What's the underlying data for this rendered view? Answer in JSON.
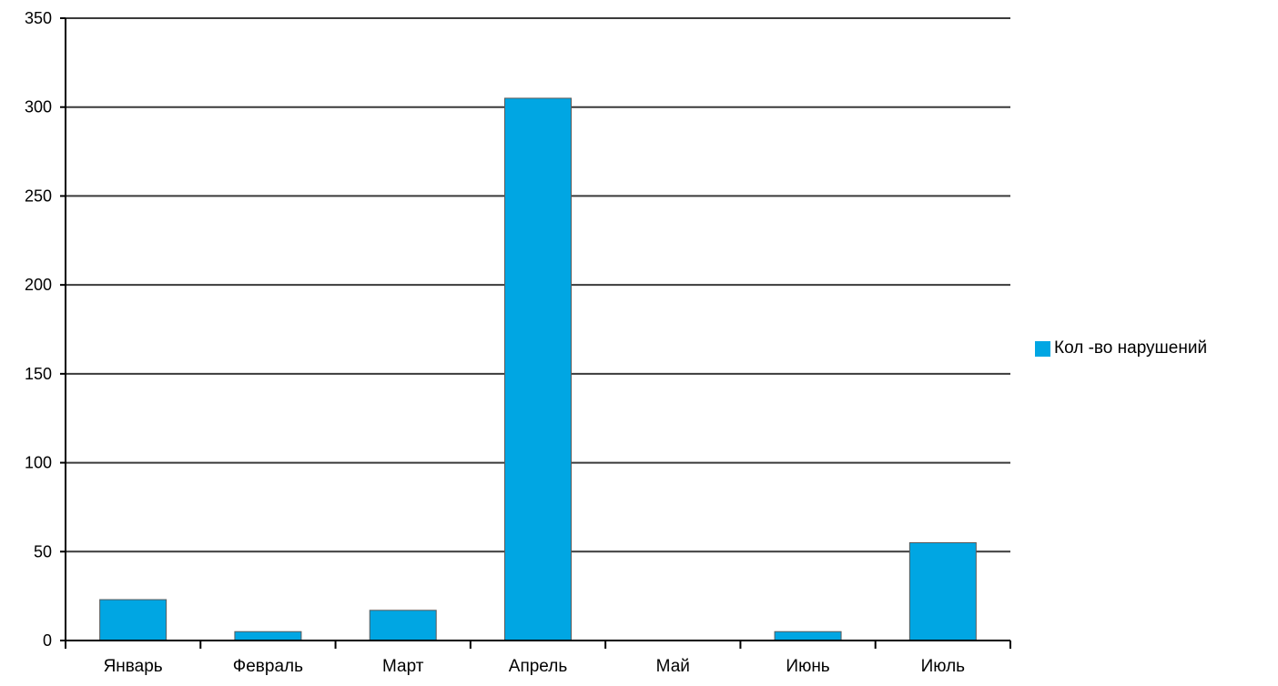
{
  "chart_data": {
    "type": "bar",
    "categories": [
      "Январь",
      "Февраль",
      "Март",
      "Апрель",
      "Май",
      "Июнь",
      "Июль"
    ],
    "series": [
      {
        "name": "Кол -во нарушений",
        "values": [
          23,
          5,
          17,
          305,
          0,
          5,
          55
        ],
        "color": "#00a6e3"
      }
    ],
    "yticks": [
      "0",
      "50",
      "100",
      "150",
      "200",
      "250",
      "300",
      "350"
    ],
    "ylim": [
      0,
      350
    ],
    "grid": true,
    "legend_position": "right"
  }
}
